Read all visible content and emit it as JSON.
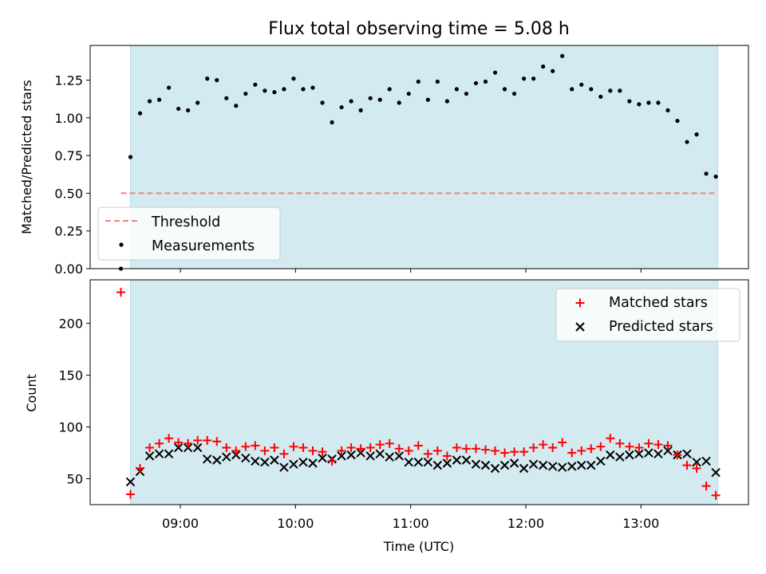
{
  "chart_data": [
    {
      "type": "scatter",
      "panel": "top",
      "title": "Flux total observing time = 5.08 h",
      "xlabel": "",
      "ylabel": "Matched/Predicted stars",
      "ylim": [
        0,
        1.48
      ],
      "yticks": [
        "0.00",
        "0.25",
        "0.50",
        "0.75",
        "1.00",
        "1.25"
      ],
      "legend_position": "lower-left",
      "shaded_region": {
        "start": "08:34",
        "end": "13:40",
        "color": "#d3eaf0"
      },
      "threshold": {
        "name": "Threshold",
        "value": 0.5,
        "start": "08:29",
        "end": "13:40",
        "color": "#f08080"
      },
      "series": [
        {
          "name": "Measurements",
          "color": "#000000",
          "points": [
            [
              "08:29",
              0.0
            ],
            [
              "08:34",
              0.74
            ],
            [
              "08:39",
              1.03
            ],
            [
              "08:44",
              1.11
            ],
            [
              "08:49",
              1.12
            ],
            [
              "08:54",
              1.2
            ],
            [
              "08:59",
              1.06
            ],
            [
              "09:04",
              1.05
            ],
            [
              "09:09",
              1.1
            ],
            [
              "09:14",
              1.26
            ],
            [
              "09:19",
              1.25
            ],
            [
              "09:24",
              1.13
            ],
            [
              "09:29",
              1.08
            ],
            [
              "09:34",
              1.16
            ],
            [
              "09:39",
              1.22
            ],
            [
              "09:44",
              1.18
            ],
            [
              "09:49",
              1.17
            ],
            [
              "09:54",
              1.19
            ],
            [
              "09:59",
              1.26
            ],
            [
              "10:04",
              1.19
            ],
            [
              "10:09",
              1.2
            ],
            [
              "10:14",
              1.1
            ],
            [
              "10:19",
              0.97
            ],
            [
              "10:24",
              1.07
            ],
            [
              "10:29",
              1.11
            ],
            [
              "10:34",
              1.05
            ],
            [
              "10:39",
              1.13
            ],
            [
              "10:44",
              1.12
            ],
            [
              "10:49",
              1.19
            ],
            [
              "10:54",
              1.1
            ],
            [
              "10:59",
              1.16
            ],
            [
              "11:04",
              1.24
            ],
            [
              "11:09",
              1.12
            ],
            [
              "11:14",
              1.24
            ],
            [
              "11:19",
              1.11
            ],
            [
              "11:24",
              1.19
            ],
            [
              "11:29",
              1.16
            ],
            [
              "11:34",
              1.23
            ],
            [
              "11:39",
              1.24
            ],
            [
              "11:44",
              1.3
            ],
            [
              "11:49",
              1.19
            ],
            [
              "11:54",
              1.16
            ],
            [
              "11:59",
              1.26
            ],
            [
              "12:04",
              1.26
            ],
            [
              "12:09",
              1.34
            ],
            [
              "12:14",
              1.31
            ],
            [
              "12:19",
              1.41
            ],
            [
              "12:24",
              1.19
            ],
            [
              "12:29",
              1.22
            ],
            [
              "12:34",
              1.19
            ],
            [
              "12:39",
              1.14
            ],
            [
              "12:44",
              1.18
            ],
            [
              "12:49",
              1.18
            ],
            [
              "12:54",
              1.11
            ],
            [
              "12:59",
              1.09
            ],
            [
              "13:04",
              1.1
            ],
            [
              "13:09",
              1.1
            ],
            [
              "13:14",
              1.05
            ],
            [
              "13:19",
              0.98
            ],
            [
              "13:24",
              0.84
            ],
            [
              "13:29",
              0.89
            ],
            [
              "13:34",
              0.63
            ],
            [
              "13:39",
              0.61
            ]
          ]
        }
      ]
    },
    {
      "type": "scatter",
      "panel": "bottom",
      "title": "",
      "xlabel": "Time (UTC)",
      "ylabel": "Count",
      "xlim": [
        "08:13",
        "13:56"
      ],
      "xticks": [
        "09:00",
        "10:00",
        "11:00",
        "12:00",
        "13:00"
      ],
      "ylim": [
        25,
        242
      ],
      "yticks": [
        "50",
        "100",
        "150",
        "200"
      ],
      "legend_position": "upper-right",
      "shaded_region": {
        "start": "08:34",
        "end": "13:40",
        "color": "#d3eaf0"
      },
      "series": [
        {
          "name": "Matched stars",
          "marker": "plus",
          "color": "#ff0000",
          "points": [
            [
              "08:29",
              230
            ],
            [
              "08:34",
              35
            ],
            [
              "08:39",
              60
            ],
            [
              "08:44",
              80
            ],
            [
              "08:49",
              84
            ],
            [
              "08:54",
              89
            ],
            [
              "08:59",
              85
            ],
            [
              "09:04",
              84
            ],
            [
              "09:09",
              87
            ],
            [
              "09:14",
              87
            ],
            [
              "09:19",
              86
            ],
            [
              "09:24",
              80
            ],
            [
              "09:29",
              77
            ],
            [
              "09:34",
              81
            ],
            [
              "09:39",
              82
            ],
            [
              "09:44",
              77
            ],
            [
              "09:49",
              80
            ],
            [
              "09:54",
              74
            ],
            [
              "09:59",
              81
            ],
            [
              "10:04",
              80
            ],
            [
              "10:09",
              77
            ],
            [
              "10:14",
              76
            ],
            [
              "10:19",
              67
            ],
            [
              "10:24",
              77
            ],
            [
              "10:29",
              80
            ],
            [
              "10:34",
              79
            ],
            [
              "10:39",
              80
            ],
            [
              "10:44",
              83
            ],
            [
              "10:49",
              84
            ],
            [
              "10:54",
              79
            ],
            [
              "10:59",
              77
            ],
            [
              "11:04",
              82
            ],
            [
              "11:09",
              74
            ],
            [
              "11:14",
              77
            ],
            [
              "11:19",
              72
            ],
            [
              "11:24",
              80
            ],
            [
              "11:29",
              79
            ],
            [
              "11:34",
              79
            ],
            [
              "11:39",
              78
            ],
            [
              "11:44",
              77
            ],
            [
              "11:49",
              75
            ],
            [
              "11:54",
              76
            ],
            [
              "11:59",
              76
            ],
            [
              "12:04",
              80
            ],
            [
              "12:09",
              83
            ],
            [
              "12:14",
              80
            ],
            [
              "12:19",
              85
            ],
            [
              "12:24",
              75
            ],
            [
              "12:29",
              77
            ],
            [
              "12:34",
              79
            ],
            [
              "12:39",
              81
            ],
            [
              "12:44",
              89
            ],
            [
              "12:49",
              84
            ],
            [
              "12:54",
              81
            ],
            [
              "12:59",
              80
            ],
            [
              "13:04",
              84
            ],
            [
              "13:09",
              83
            ],
            [
              "13:14",
              82
            ],
            [
              "13:19",
              73
            ],
            [
              "13:24",
              63
            ],
            [
              "13:29",
              60
            ],
            [
              "13:34",
              43
            ],
            [
              "13:39",
              34
            ]
          ]
        },
        {
          "name": "Predicted stars",
          "marker": "x",
          "color": "#000000",
          "points": [
            [
              "08:34",
              47
            ],
            [
              "08:39",
              57
            ],
            [
              "08:44",
              72
            ],
            [
              "08:49",
              74
            ],
            [
              "08:54",
              74
            ],
            [
              "08:59",
              80
            ],
            [
              "09:04",
              80
            ],
            [
              "09:09",
              80
            ],
            [
              "09:14",
              69
            ],
            [
              "09:19",
              68
            ],
            [
              "09:24",
              71
            ],
            [
              "09:29",
              73
            ],
            [
              "09:34",
              70
            ],
            [
              "09:39",
              67
            ],
            [
              "09:44",
              66
            ],
            [
              "09:49",
              68
            ],
            [
              "09:54",
              61
            ],
            [
              "09:59",
              64
            ],
            [
              "10:04",
              66
            ],
            [
              "10:09",
              65
            ],
            [
              "10:14",
              70
            ],
            [
              "10:19",
              69
            ],
            [
              "10:24",
              72
            ],
            [
              "10:29",
              73
            ],
            [
              "10:34",
              75
            ],
            [
              "10:39",
              72
            ],
            [
              "10:44",
              74
            ],
            [
              "10:49",
              71
            ],
            [
              "10:54",
              72
            ],
            [
              "10:59",
              66
            ],
            [
              "11:04",
              66
            ],
            [
              "11:09",
              66
            ],
            [
              "11:14",
              63
            ],
            [
              "11:19",
              65
            ],
            [
              "11:24",
              68
            ],
            [
              "11:29",
              68
            ],
            [
              "11:34",
              64
            ],
            [
              "11:39",
              63
            ],
            [
              "11:44",
              60
            ],
            [
              "11:49",
              63
            ],
            [
              "11:54",
              65
            ],
            [
              "11:59",
              60
            ],
            [
              "12:04",
              64
            ],
            [
              "12:09",
              63
            ],
            [
              "12:14",
              62
            ],
            [
              "12:19",
              61
            ],
            [
              "12:24",
              62
            ],
            [
              "12:29",
              63
            ],
            [
              "12:34",
              63
            ],
            [
              "12:39",
              67
            ],
            [
              "12:44",
              73
            ],
            [
              "12:49",
              71
            ],
            [
              "12:54",
              73
            ],
            [
              "12:59",
              74
            ],
            [
              "13:04",
              75
            ],
            [
              "13:09",
              74
            ],
            [
              "13:14",
              77
            ],
            [
              "13:19",
              73
            ],
            [
              "13:24",
              74
            ],
            [
              "13:29",
              66
            ],
            [
              "13:34",
              67
            ],
            [
              "13:39",
              56
            ]
          ]
        }
      ]
    }
  ]
}
